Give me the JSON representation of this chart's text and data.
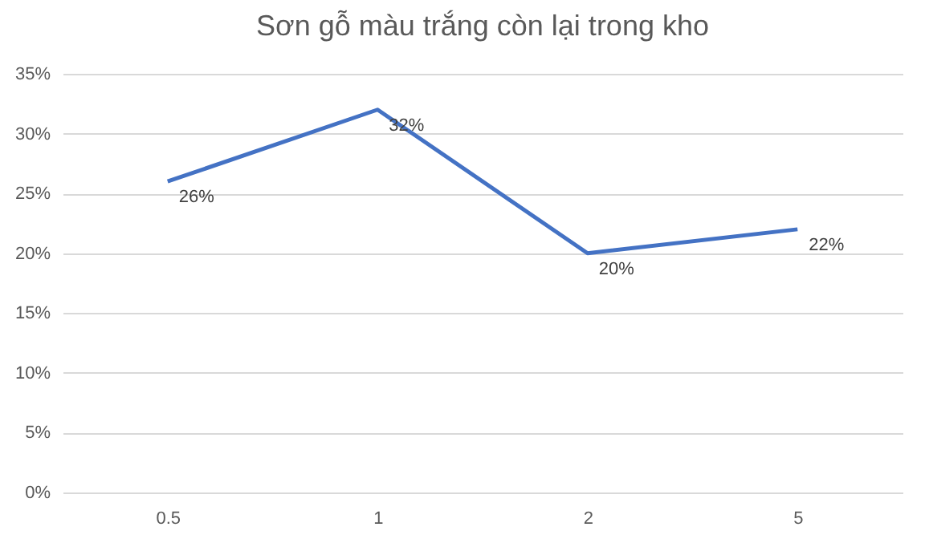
{
  "chart_data": {
    "type": "line",
    "title": "Sơn gỗ màu trắng còn lại trong kho",
    "categories": [
      "0.5",
      "1",
      "2",
      "5"
    ],
    "series": [
      {
        "color": "#4472c4",
        "values": [
          26,
          32,
          20,
          22
        ],
        "value_labels": [
          "26%",
          "32%",
          "20%",
          "22%"
        ]
      }
    ],
    "ylim": [
      0,
      35
    ],
    "yticks": [
      {
        "value": 0,
        "label": "0%"
      },
      {
        "value": 5,
        "label": "5%"
      },
      {
        "value": 10,
        "label": "10%"
      },
      {
        "value": 15,
        "label": "15%"
      },
      {
        "value": 20,
        "label": "20%"
      },
      {
        "value": 25,
        "label": "25%"
      },
      {
        "value": 30,
        "label": "30%"
      },
      {
        "value": 35,
        "label": "35%"
      }
    ],
    "grid": "y",
    "marker": "none",
    "line_style": "solid"
  }
}
